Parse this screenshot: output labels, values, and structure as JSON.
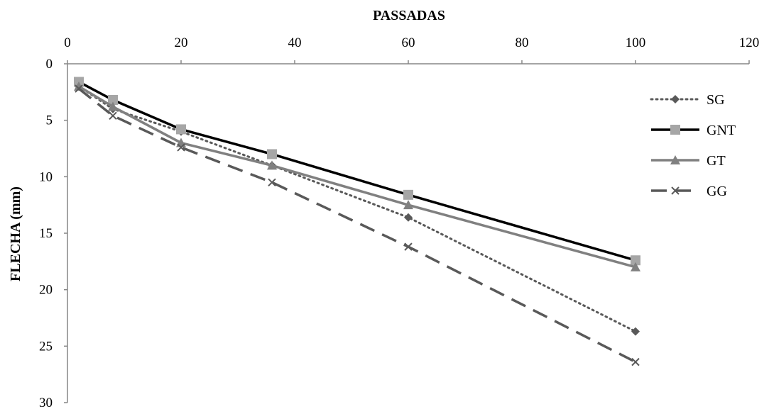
{
  "chart_data": {
    "type": "line",
    "title": "",
    "xlabel": "PASSADAS",
    "ylabel": "FLECHA (mm)",
    "xlim": [
      0,
      120
    ],
    "ylim": [
      0,
      30
    ],
    "y_inverted": true,
    "x_axis_position": "top",
    "x_ticks": [
      0,
      20,
      40,
      60,
      80,
      100,
      120
    ],
    "y_ticks": [
      0,
      5,
      10,
      15,
      20,
      25,
      30
    ],
    "grid": false,
    "legend_position": "right",
    "series": [
      {
        "name": "SG",
        "color": "#595959",
        "dash": "dotted",
        "marker": "diamond",
        "points": [
          [
            2,
            2.0
          ],
          [
            8,
            4.0
          ],
          [
            20,
            6.0
          ],
          [
            36,
            9.0
          ],
          [
            60,
            13.6
          ],
          [
            100,
            23.7
          ]
        ]
      },
      {
        "name": "GNT",
        "color": "#000000",
        "dash": "solid",
        "marker": "square",
        "points": [
          [
            2,
            1.6
          ],
          [
            8,
            3.2
          ],
          [
            20,
            5.8
          ],
          [
            36,
            8.0
          ],
          [
            60,
            11.6
          ],
          [
            100,
            17.4
          ]
        ]
      },
      {
        "name": "GT",
        "color": "#808080",
        "dash": "solid",
        "marker": "triangle",
        "points": [
          [
            2,
            2.0
          ],
          [
            8,
            3.8
          ],
          [
            20,
            7.0
          ],
          [
            36,
            9.0
          ],
          [
            60,
            12.5
          ],
          [
            100,
            18.0
          ]
        ]
      },
      {
        "name": "GG",
        "color": "#595959",
        "dash": "dashed",
        "marker": "x",
        "points": [
          [
            2,
            2.2
          ],
          [
            8,
            4.6
          ],
          [
            20,
            7.4
          ],
          [
            36,
            10.5
          ],
          [
            60,
            16.2
          ],
          [
            100,
            26.4
          ]
        ]
      }
    ]
  }
}
